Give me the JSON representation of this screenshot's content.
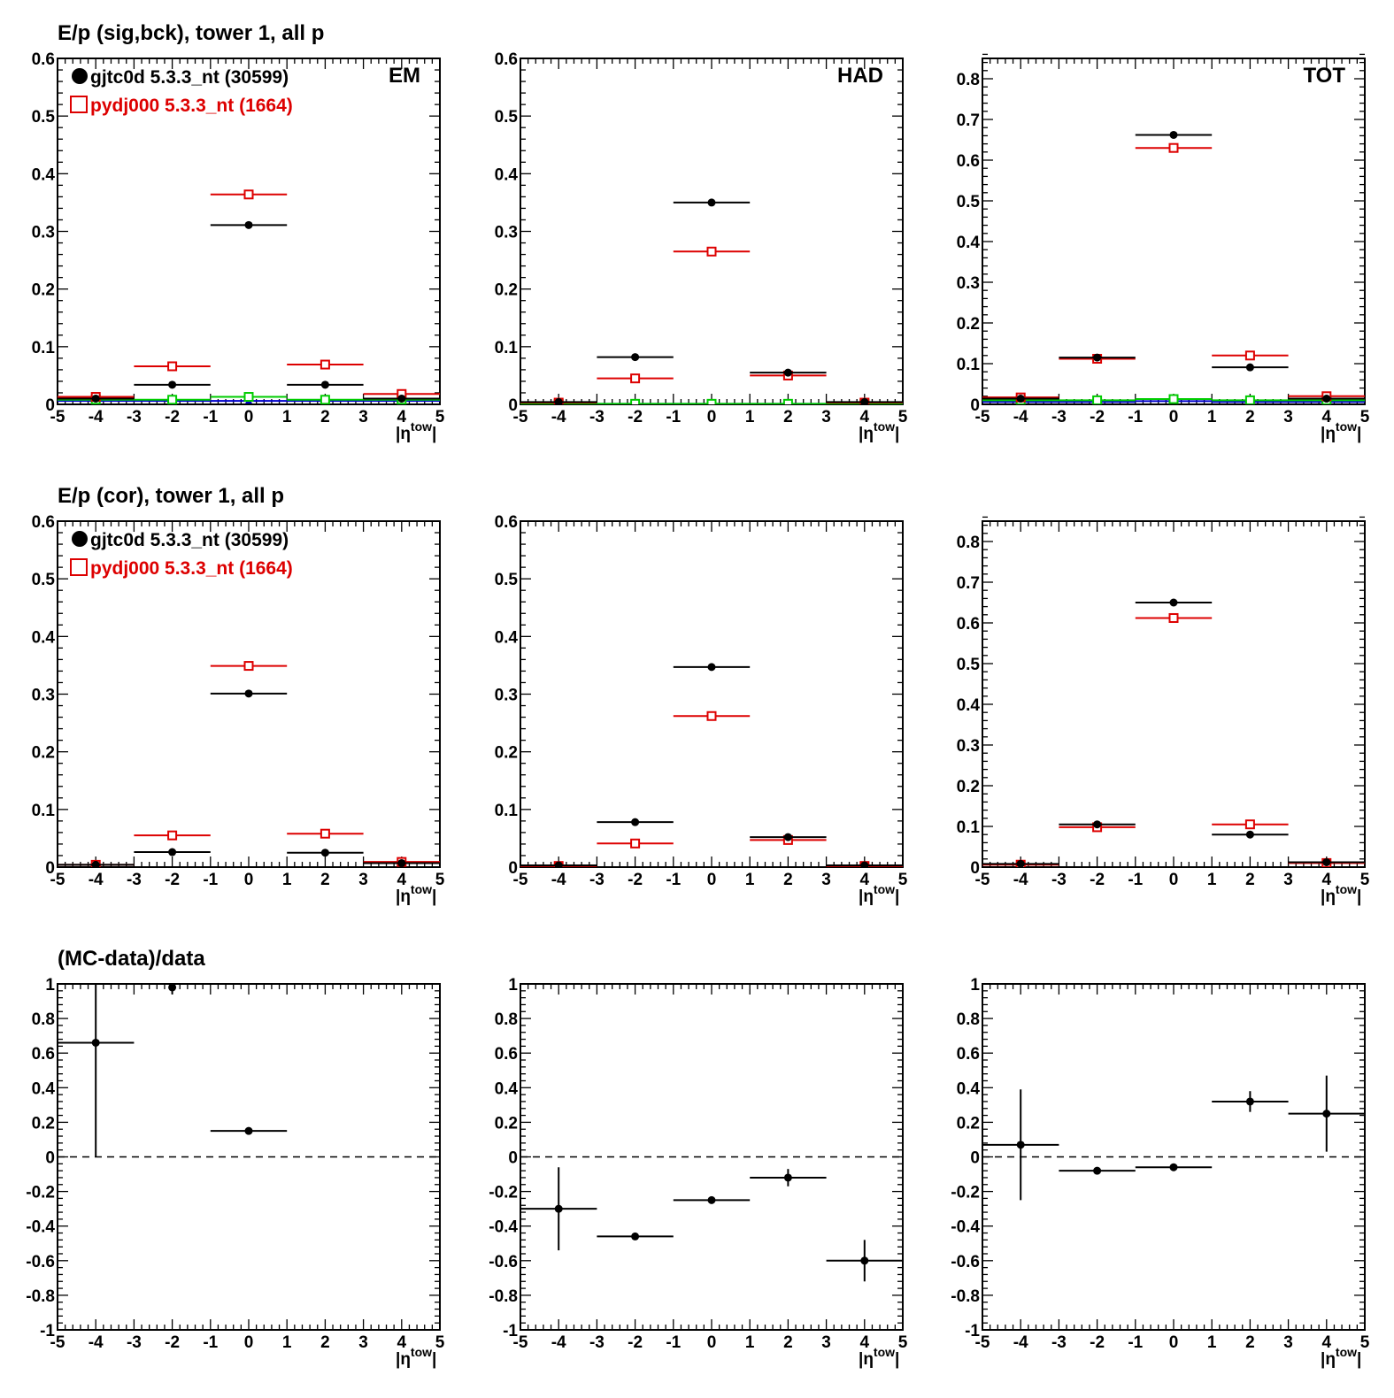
{
  "chart_data": [
    {
      "type": "scatter",
      "title": "E/p (sig,bck), tower 1, all p",
      "panel_label": "EM",
      "xlabel_main": "|η",
      "xlabel_sup": "tow",
      "xlabel_end": "|",
      "xlim": [
        -5,
        5
      ],
      "ylim": [
        0,
        0.6
      ],
      "yticks": [
        "0",
        "0.1",
        "0.2",
        "0.3",
        "0.4",
        "0.5",
        "0.6"
      ],
      "legend": [
        {
          "label": "gjtc0d 5.3.3_nt (30599)",
          "marker": "filled-circle",
          "color": "#000000"
        },
        {
          "label": "pydj000 5.3.3_nt (1664)",
          "marker": "open-square",
          "color": "#dd0000"
        }
      ],
      "series": [
        {
          "name": "gjtc0d 5.3.3_nt (30599)",
          "color": "#000000",
          "marker": "filled-circle",
          "x": [
            -4,
            -2,
            0,
            2,
            4
          ],
          "y": [
            0.01,
            0.034,
            0.311,
            0.034,
            0.01
          ],
          "xerr": 1
        },
        {
          "name": "pydj000 5.3.3_nt (1664)",
          "color": "#dd0000",
          "marker": "open-square",
          "x": [
            -4,
            -2,
            0,
            2,
            4
          ],
          "y": [
            0.013,
            0.066,
            0.364,
            0.069,
            0.018
          ],
          "xerr": 1
        },
        {
          "color": "#00cc00",
          "marker": "open-square",
          "x": [
            -4,
            -2,
            0,
            2,
            4
          ],
          "y": [
            0.008,
            0.008,
            0.013,
            0.008,
            0.008
          ],
          "xerr": 1
        },
        {
          "color": "#0000cc",
          "marker": "filled-triangle",
          "x": [
            -4,
            -2,
            0,
            2,
            4
          ],
          "y": [
            0.006,
            0.006,
            0.006,
            0.006,
            0.006
          ],
          "xerr": 1
        }
      ]
    },
    {
      "type": "scatter",
      "title": "",
      "panel_label": "HAD",
      "xlabel_main": "|η",
      "xlabel_sup": "tow",
      "xlabel_end": "|",
      "xlim": [
        -5,
        5
      ],
      "ylim": [
        0,
        0.6
      ],
      "yticks": [
        "0",
        "0.1",
        "0.2",
        "0.3",
        "0.4",
        "0.5",
        "0.6"
      ],
      "series": [
        {
          "color": "#000000",
          "marker": "filled-circle",
          "x": [
            -4,
            -2,
            0,
            2,
            4
          ],
          "y": [
            0.004,
            0.082,
            0.35,
            0.055,
            0.004
          ],
          "xerr": 1
        },
        {
          "color": "#dd0000",
          "marker": "open-square",
          "x": [
            -4,
            -2,
            0,
            2,
            4
          ],
          "y": [
            0.003,
            0.045,
            0.265,
            0.05,
            0.003
          ],
          "xerr": 1
        },
        {
          "color": "#00cc00",
          "marker": "open-square",
          "x": [
            -4,
            -2,
            0,
            2,
            4
          ],
          "y": [
            0.001,
            0.001,
            0.001,
            0.001,
            0.001
          ],
          "xerr": 1
        },
        {
          "color": "#0000cc",
          "marker": "filled-triangle",
          "x": [
            -4,
            -2,
            0,
            2,
            4
          ],
          "y": [
            0.001,
            0.001,
            0.001,
            0.001,
            0.001
          ],
          "xerr": 1
        }
      ]
    },
    {
      "type": "scatter",
      "title": "",
      "panel_label": "TOT",
      "xlabel_main": "|η",
      "xlabel_sup": "tow",
      "xlabel_end": "|",
      "xlim": [
        -5,
        5
      ],
      "ylim": [
        0,
        0.85
      ],
      "yticks": [
        "0",
        "0.1",
        "0.2",
        "0.3",
        "0.4",
        "0.5",
        "0.6",
        "0.7",
        "0.8"
      ],
      "series": [
        {
          "color": "#000000",
          "marker": "filled-circle",
          "x": [
            -4,
            -2,
            0,
            2,
            4
          ],
          "y": [
            0.014,
            0.115,
            0.662,
            0.091,
            0.014
          ],
          "xerr": 1
        },
        {
          "color": "#dd0000",
          "marker": "open-square",
          "x": [
            -4,
            -2,
            0,
            2,
            4
          ],
          "y": [
            0.017,
            0.112,
            0.63,
            0.12,
            0.02
          ],
          "xerr": 1
        },
        {
          "color": "#00cc00",
          "marker": "open-square",
          "x": [
            -4,
            -2,
            0,
            2,
            4
          ],
          "y": [
            0.01,
            0.01,
            0.013,
            0.01,
            0.01
          ],
          "xerr": 1
        },
        {
          "color": "#0000cc",
          "marker": "filled-triangle",
          "x": [
            -4,
            -2,
            0,
            2,
            4
          ],
          "y": [
            0.006,
            0.006,
            0.008,
            0.006,
            0.006
          ],
          "xerr": 1
        }
      ]
    },
    {
      "type": "scatter",
      "title": "E/p (cor), tower 1, all p",
      "panel_label": "",
      "xlabel_main": "|η",
      "xlabel_sup": "tow",
      "xlabel_end": "|",
      "xlim": [
        -5,
        5
      ],
      "ylim": [
        0,
        0.6
      ],
      "yticks": [
        "0",
        "0.1",
        "0.2",
        "0.3",
        "0.4",
        "0.5",
        "0.6"
      ],
      "legend": [
        {
          "label": "gjtc0d 5.3.3_nt (30599)",
          "marker": "filled-circle",
          "color": "#000000"
        },
        {
          "label": "pydj000 5.3.3_nt (1664)",
          "marker": "open-square",
          "color": "#dd0000"
        }
      ],
      "series": [
        {
          "name": "gjtc0d 5.3.3_nt (30599)",
          "color": "#000000",
          "marker": "filled-circle",
          "x": [
            -4,
            -2,
            0,
            2,
            4
          ],
          "y": [
            0.004,
            0.026,
            0.301,
            0.025,
            0.007
          ],
          "xerr": 1
        },
        {
          "name": "pydj000 5.3.3_nt (1664)",
          "color": "#dd0000",
          "marker": "open-square",
          "x": [
            -4,
            -2,
            0,
            2,
            4
          ],
          "y": [
            0.004,
            0.055,
            0.349,
            0.058,
            0.009
          ],
          "xerr": 1
        }
      ]
    },
    {
      "type": "scatter",
      "title": "",
      "panel_label": "",
      "xlabel_main": "|η",
      "xlabel_sup": "tow",
      "xlabel_end": "|",
      "xlim": [
        -5,
        5
      ],
      "ylim": [
        0,
        0.6
      ],
      "yticks": [
        "0",
        "0.1",
        "0.2",
        "0.3",
        "0.4",
        "0.5",
        "0.6"
      ],
      "series": [
        {
          "color": "#000000",
          "marker": "filled-circle",
          "x": [
            -4,
            -2,
            0,
            2,
            4
          ],
          "y": [
            0.003,
            0.078,
            0.347,
            0.052,
            0.003
          ],
          "xerr": 1
        },
        {
          "color": "#dd0000",
          "marker": "open-square",
          "x": [
            -4,
            -2,
            0,
            2,
            4
          ],
          "y": [
            0.002,
            0.041,
            0.262,
            0.047,
            0.002
          ],
          "xerr": 1
        }
      ]
    },
    {
      "type": "scatter",
      "title": "",
      "panel_label": "",
      "xlabel_main": "|η",
      "xlabel_sup": "tow",
      "xlabel_end": "|",
      "xlim": [
        -5,
        5
      ],
      "ylim": [
        0,
        0.85
      ],
      "yticks": [
        "0",
        "0.1",
        "0.2",
        "0.3",
        "0.4",
        "0.5",
        "0.6",
        "0.7",
        "0.8"
      ],
      "series": [
        {
          "color": "#000000",
          "marker": "filled-circle",
          "x": [
            -4,
            -2,
            0,
            2,
            4
          ],
          "y": [
            0.008,
            0.105,
            0.65,
            0.08,
            0.012
          ],
          "xerr": 1
        },
        {
          "color": "#dd0000",
          "marker": "open-square",
          "x": [
            -4,
            -2,
            0,
            2,
            4
          ],
          "y": [
            0.006,
            0.098,
            0.612,
            0.105,
            0.01
          ],
          "xerr": 1
        }
      ]
    },
    {
      "type": "scatter",
      "title": "(MC-data)/data",
      "panel_label": "",
      "xlabel_main": "|η",
      "xlabel_sup": "tow",
      "xlabel_end": "|",
      "xlim": [
        -5,
        5
      ],
      "ylim": [
        -1,
        1
      ],
      "yticks": [
        "-1",
        "-0.8",
        "-0.6",
        "-0.4",
        "-0.2",
        "0",
        "0.2",
        "0.4",
        "0.6",
        "0.8",
        "1"
      ],
      "reference_line": 0,
      "series": [
        {
          "color": "#000000",
          "marker": "filled-circle",
          "x": [
            -4,
            -2,
            0
          ],
          "y": [
            0.66,
            0.98,
            0.15
          ],
          "xerr": [
            1.0,
            0.0,
            1.0
          ],
          "yerr": [
            0.66,
            0.04,
            0.01
          ]
        }
      ]
    },
    {
      "type": "scatter",
      "title": "",
      "panel_label": "",
      "xlabel_main": "|η",
      "xlabel_sup": "tow",
      "xlabel_end": "|",
      "xlim": [
        -5,
        5
      ],
      "ylim": [
        -1,
        1
      ],
      "yticks": [
        "-1",
        "-0.8",
        "-0.6",
        "-0.4",
        "-0.2",
        "0",
        "0.2",
        "0.4",
        "0.6",
        "0.8",
        "1"
      ],
      "reference_line": 0,
      "series": [
        {
          "color": "#000000",
          "marker": "filled-circle",
          "x": [
            -4,
            -2,
            0,
            2,
            4
          ],
          "y": [
            -0.3,
            -0.46,
            -0.25,
            -0.12,
            -0.6
          ],
          "xerr": 1,
          "yerr": [
            0.24,
            0.02,
            0.01,
            0.05,
            0.12
          ]
        }
      ]
    },
    {
      "type": "scatter",
      "title": "",
      "panel_label": "",
      "xlabel_main": "|η",
      "xlabel_sup": "tow",
      "xlabel_end": "|",
      "xlim": [
        -5,
        5
      ],
      "ylim": [
        -1,
        1
      ],
      "yticks": [
        "-1",
        "-0.8",
        "-0.6",
        "-0.4",
        "-0.2",
        "0",
        "0.2",
        "0.4",
        "0.6",
        "0.8",
        "1"
      ],
      "reference_line": 0,
      "series": [
        {
          "color": "#000000",
          "marker": "filled-circle",
          "x": [
            -4,
            -2,
            0,
            2,
            4
          ],
          "y": [
            0.07,
            -0.08,
            -0.06,
            0.32,
            0.25
          ],
          "xerr": 1,
          "yerr": [
            0.32,
            0.02,
            0.01,
            0.06,
            0.22
          ]
        }
      ]
    }
  ]
}
